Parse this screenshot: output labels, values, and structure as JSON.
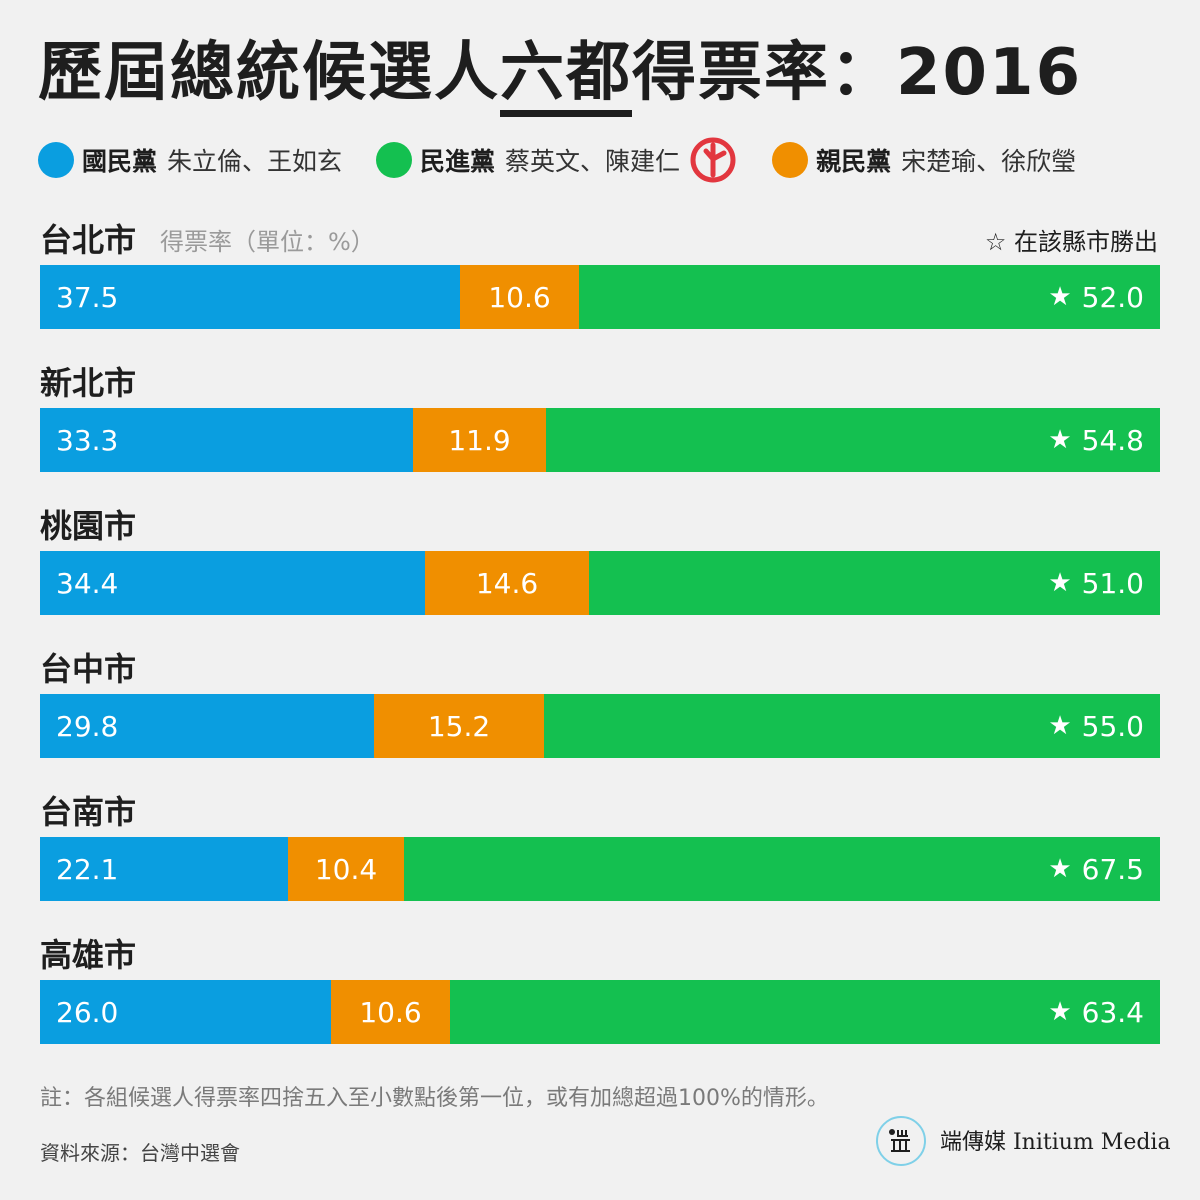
{
  "title": {
    "before": "歷屆總統候選人",
    "highlight": "六都",
    "after": "得票率：2016"
  },
  "legend": [
    {
      "party": "國民黨",
      "candidates": "朱立倫、王如玄",
      "color": "#0a9ee0",
      "winner": false
    },
    {
      "party": "民進黨",
      "candidates": "蔡英文、陳建仁",
      "color": "#14c050",
      "winner": true
    },
    {
      "party": "親民黨",
      "candidates": "宋楚瑜、徐欣瑩",
      "color": "#f08f00",
      "winner": false
    }
  ],
  "unit_label": "得票率（單位：%）",
  "win_note": "☆ 在該縣市勝出",
  "chart_data": {
    "type": "bar",
    "stacked": true,
    "orientation": "horizontal",
    "categories": [
      "台北市",
      "新北市",
      "桃園市",
      "台中市",
      "台南市",
      "高雄市"
    ],
    "series": [
      {
        "name": "國民黨",
        "color": "#0a9ee0",
        "values": [
          37.5,
          33.3,
          34.4,
          29.8,
          22.1,
          26.0
        ]
      },
      {
        "name": "親民黨",
        "color": "#f08f00",
        "values": [
          10.6,
          11.9,
          14.6,
          15.2,
          10.4,
          10.6
        ]
      },
      {
        "name": "民進黨",
        "color": "#14c050",
        "values": [
          52.0,
          54.8,
          51.0,
          55.0,
          67.5,
          63.4
        ]
      }
    ],
    "value_labels": [
      [
        "37.5",
        "10.6",
        "52.0"
      ],
      [
        "33.3",
        "11.9",
        "54.8"
      ],
      [
        "34.4",
        "14.6",
        "51.0"
      ],
      [
        "29.8",
        "15.2",
        "55.0"
      ],
      [
        "22.1",
        "10.4",
        "67.5"
      ],
      [
        "26.0",
        "10.6",
        "63.4"
      ]
    ],
    "winner_series": "民進黨",
    "winner_marker": "★",
    "xlim": [
      0,
      100
    ]
  },
  "note": "註：各組候選人得票率四捨五入至小數點後第一位，或有加總超過100%的情形。",
  "source": "資料來源：台灣中選會",
  "logo": {
    "name": "端傳媒 Initium Media"
  }
}
